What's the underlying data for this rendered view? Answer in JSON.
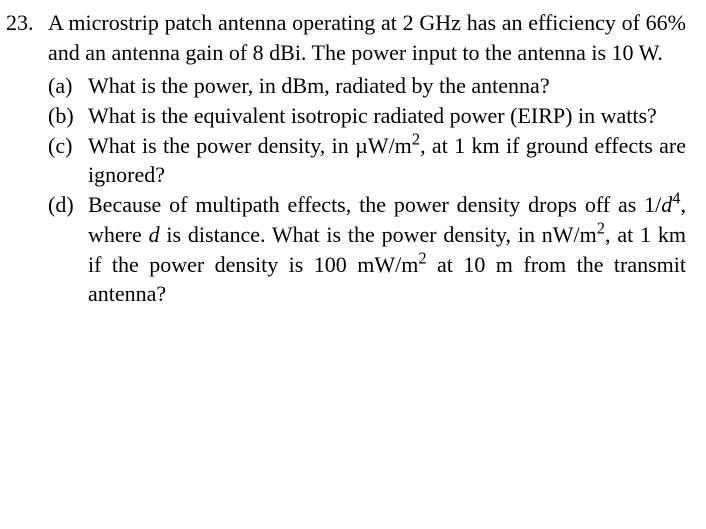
{
  "problem": {
    "number": "23.",
    "intro": "A microstrip patch antenna operating at 2 GHz has an efficiency of 66% and an antenna gain of 8 dBi. The power input to the antenna is 10 W.",
    "subparts": {
      "a": {
        "label": "(a)",
        "text": "What is the power, in dBm, radiated by the antenna?"
      },
      "b": {
        "label": "(b)",
        "text": "What is the equivalent isotropic radiated power (EIRP) in watts?"
      },
      "c": {
        "label": "(c)",
        "text_pre": "What is the power density, in µW/m",
        "exp1": "2",
        "text_mid": ", at 1 km if ground effects are ignored?"
      },
      "d": {
        "label": "(d)",
        "text_pre": "Because of multipath effects, the power density drops off as 1/",
        "var": "d",
        "exp1": "4",
        "text_mid1": ", where ",
        "var2": "d",
        "text_mid2": " is distance. What is the power density, in nW/m",
        "exp2": "2",
        "text_mid3": ", at 1 km if the power density is 100 mW/m",
        "exp3": "2",
        "text_end": " at 10 m from the transmit antenna?"
      }
    }
  }
}
